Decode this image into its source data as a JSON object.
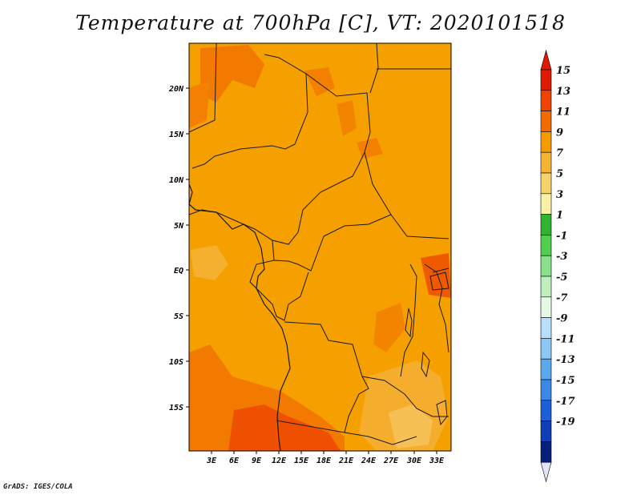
{
  "title": "Temperature at 700hPa [C], VT: 2020101518",
  "credit": "GrADS: IGES/COLA",
  "map": {
    "region": "Central Africa",
    "field": "Temperature at 700hPa",
    "units": "C",
    "lat_labels": [
      "20N",
      "15N",
      "10N",
      "5N",
      "EQ",
      "5S",
      "10S",
      "15S"
    ],
    "lon_labels": [
      "3E",
      "6E",
      "9E",
      "12E",
      "15E",
      "18E",
      "21E",
      "24E",
      "27E",
      "30E",
      "33E"
    ]
  },
  "colorbar": {
    "levels": [
      "15",
      "13",
      "11",
      "9",
      "7",
      "5",
      "3",
      "1",
      "-1",
      "-3",
      "-5",
      "-7",
      "-9",
      "-11",
      "-13",
      "-15",
      "-17",
      "-19"
    ],
    "colors": [
      "#e01a00",
      "#ee4400",
      "#f36a00",
      "#f59a00",
      "#f5b331",
      "#f7d26a",
      "#faf0a6",
      "#2fb52f",
      "#4ed04e",
      "#88e188",
      "#bdf0bd",
      "#e5fae5",
      "#b7defa",
      "#8cc8f5",
      "#5ca8ef",
      "#3a88e8",
      "#1c5fd8",
      "#0d3fb8",
      "#061f7a"
    ],
    "over_color": "#e01a00",
    "under_color": "#e4e4f8"
  }
}
